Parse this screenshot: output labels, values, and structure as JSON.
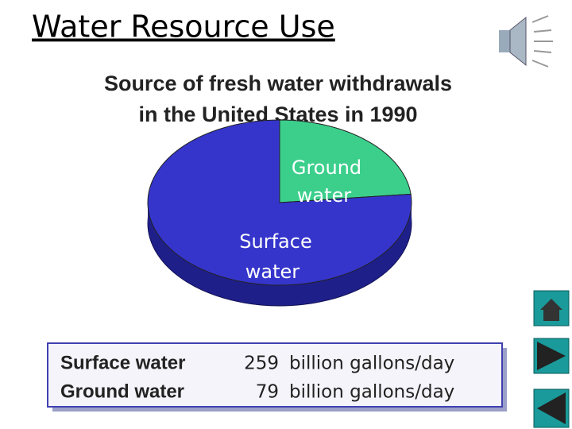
{
  "slide_title": "Water Resource Use",
  "chart_data": {
    "type": "pie",
    "title": [
      "Source of fresh water withdrawals",
      "in the United States in 1990"
    ],
    "categories": [
      "Surface water",
      "Ground water"
    ],
    "label_lines": [
      [
        "Surface",
        "water"
      ],
      [
        "Ground",
        "water"
      ]
    ],
    "values": [
      259,
      79
    ],
    "unit": "billion gallons/day",
    "colors": [
      "#3535cc",
      "#3ccf8c"
    ]
  }
}
